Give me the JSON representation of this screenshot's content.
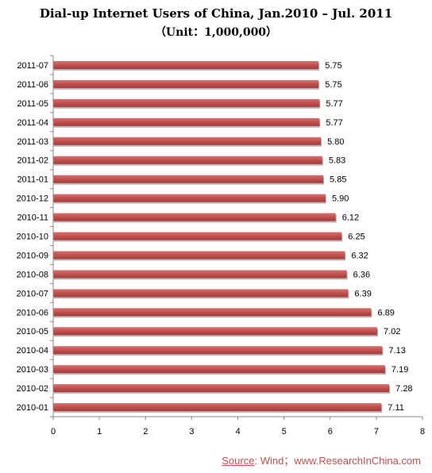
{
  "chart_data": {
    "type": "bar",
    "orientation": "horizontal",
    "title": "Dial-up Internet Users of China, Jan.2010 – Jul. 2011",
    "subtitle": "（Unit：1,000,000）",
    "categories": [
      "2011-07",
      "2011-06",
      "2011-05",
      "2011-04",
      "2011-03",
      "2011-02",
      "2011-01",
      "2010-12",
      "2010-11",
      "2010-10",
      "2010-09",
      "2010-08",
      "2010-07",
      "2010-06",
      "2010-05",
      "2010-04",
      "2010-03",
      "2010-02",
      "2010-01"
    ],
    "values": [
      5.75,
      5.75,
      5.77,
      5.77,
      5.8,
      5.83,
      5.85,
      5.9,
      6.12,
      6.25,
      6.32,
      6.36,
      6.39,
      6.89,
      7.02,
      7.13,
      7.19,
      7.28,
      7.11
    ],
    "value_labels": [
      "5.75",
      "5.75",
      "5.77",
      "5.77",
      "5.80",
      "5.83",
      "5.85",
      "5.90",
      "6.12",
      "6.25",
      "6.32",
      "6.36",
      "6.39",
      "6.89",
      "7.02",
      "7.13",
      "7.19",
      "7.28",
      "7.11"
    ],
    "xlim": [
      0,
      8
    ],
    "xticks": [
      "0",
      "1",
      "2",
      "3",
      "4",
      "5",
      "6",
      "7",
      "8"
    ],
    "grid": false,
    "bar_color": "#c0504d",
    "xlabel": "",
    "ylabel": ""
  },
  "source": {
    "label": "Source",
    "text": ": Wind；www.ResearchInChina.com"
  }
}
